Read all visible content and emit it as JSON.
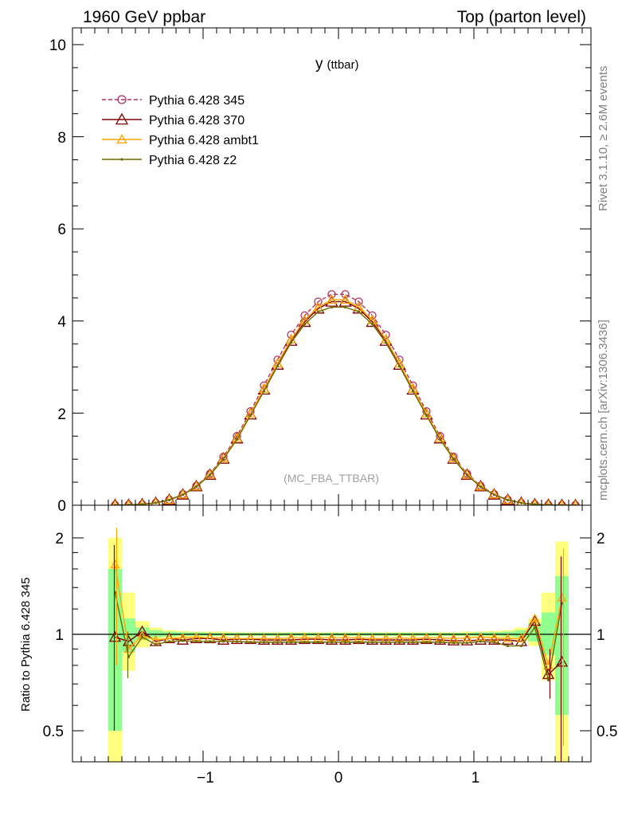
{
  "header": {
    "left": "1960 GeV ppbar",
    "right": "Top (parton level)"
  },
  "side_labels": {
    "rivet": "Rivet 3.1.10, ≥ 2.6M events",
    "mcplots": "mcplots.cern.ch [arXiv:1306.3436]"
  },
  "main_panel": {
    "title_main": "y",
    "title_sub": "(ttbar)",
    "watermark": "(MC_FBA_TTBAR)",
    "yticks": [
      "0",
      "2",
      "4",
      "6",
      "8",
      "10"
    ]
  },
  "ratio_panel": {
    "ylabel": "Ratio to Pythia 6.428 345",
    "yticks": [
      "0.5",
      "1",
      "2"
    ]
  },
  "xticks": [
    "−1",
    "0",
    "1"
  ],
  "chart_data": [
    {
      "type": "line",
      "title": "y (ttbar)",
      "xlabel": "",
      "ylabel": "",
      "xlim": [
        -1.95,
        1.9
      ],
      "ylim": [
        0,
        10.4
      ],
      "legend_position": "top-left",
      "x": [
        -1.65,
        -1.55,
        -1.45,
        -1.35,
        -1.25,
        -1.15,
        -1.05,
        -0.95,
        -0.85,
        -0.75,
        -0.65,
        -0.55,
        -0.45,
        -0.35,
        -0.25,
        -0.15,
        -0.05,
        0.05,
        0.15,
        0.25,
        0.35,
        0.45,
        0.55,
        0.65,
        0.75,
        0.85,
        0.95,
        1.05,
        1.15,
        1.25,
        1.35,
        1.45,
        1.55,
        1.65,
        1.75
      ],
      "series": [
        {
          "name": "Pythia 6.428 345",
          "color": "#b03060",
          "marker": "open-circle",
          "dashed": true,
          "values": [
            0.003,
            0.008,
            0.02,
            0.05,
            0.12,
            0.24,
            0.42,
            0.68,
            1.05,
            1.5,
            2.04,
            2.6,
            3.16,
            3.7,
            4.12,
            4.42,
            4.58,
            4.58,
            4.42,
            4.12,
            3.7,
            3.16,
            2.6,
            2.04,
            1.5,
            1.05,
            0.68,
            0.42,
            0.24,
            0.12,
            0.05,
            0.02,
            0.008,
            0.003,
            0.001
          ]
        },
        {
          "name": "Pythia 6.428 370",
          "color": "#800000",
          "marker": "open-triangle",
          "dashed": false,
          "values": [
            0.003,
            0.008,
            0.02,
            0.05,
            0.115,
            0.23,
            0.41,
            0.66,
            1.01,
            1.45,
            1.97,
            2.51,
            3.05,
            3.57,
            3.98,
            4.27,
            4.42,
            4.42,
            4.27,
            3.98,
            3.57,
            3.05,
            2.51,
            1.97,
            1.45,
            1.01,
            0.66,
            0.41,
            0.23,
            0.115,
            0.05,
            0.02,
            0.008,
            0.003,
            0.001
          ]
        },
        {
          "name": "Pythia 6.428 ambt1",
          "color": "#ffa500",
          "marker": "open-triangle",
          "dashed": false,
          "values": [
            0.003,
            0.008,
            0.02,
            0.05,
            0.117,
            0.234,
            0.41,
            0.665,
            1.02,
            1.46,
            1.99,
            2.53,
            3.08,
            3.6,
            4.02,
            4.3,
            4.46,
            4.46,
            4.3,
            4.02,
            3.6,
            3.08,
            2.53,
            1.99,
            1.46,
            1.02,
            0.665,
            0.41,
            0.234,
            0.117,
            0.05,
            0.02,
            0.008,
            0.003,
            0.001
          ]
        },
        {
          "name": "Pythia 6.428 z2",
          "color": "#6b6b00",
          "marker": "dot",
          "dashed": false,
          "values": [
            0.003,
            0.008,
            0.02,
            0.05,
            0.113,
            0.228,
            0.4,
            0.65,
            1.0,
            1.43,
            1.95,
            2.48,
            3.02,
            3.53,
            3.93,
            4.2,
            4.3,
            4.3,
            4.2,
            3.93,
            3.53,
            3.02,
            2.48,
            1.95,
            1.43,
            1.0,
            0.65,
            0.4,
            0.228,
            0.113,
            0.05,
            0.02,
            0.008,
            0.003,
            0.001
          ]
        }
      ]
    },
    {
      "type": "line",
      "title": "",
      "xlabel": "",
      "ylabel": "Ratio to Pythia 6.428 345",
      "xlim": [
        -1.95,
        1.9
      ],
      "ylim": [
        0.4,
        2.3
      ],
      "log_scale_y": true,
      "x": [
        -1.65,
        -1.55,
        -1.45,
        -1.35,
        -1.25,
        -1.15,
        -1.05,
        -0.95,
        -0.85,
        -0.75,
        -0.65,
        -0.55,
        -0.45,
        -0.35,
        -0.25,
        -0.15,
        -0.05,
        0.05,
        0.15,
        0.25,
        0.35,
        0.45,
        0.55,
        0.65,
        0.75,
        0.85,
        0.95,
        1.05,
        1.15,
        1.25,
        1.35,
        1.45,
        1.55,
        1.65
      ],
      "band_inner": [
        [
          0.5,
          1.6
        ],
        [
          0.88,
          1.12
        ],
        [
          0.96,
          1.05
        ],
        [
          0.98,
          1.03
        ],
        [
          0.985,
          1.02
        ],
        [
          0.99,
          1.015
        ],
        [
          0.99,
          1.015
        ],
        [
          0.99,
          1.01
        ],
        [
          0.99,
          1.01
        ],
        [
          0.99,
          1.01
        ],
        [
          0.99,
          1.01
        ],
        [
          0.99,
          1.01
        ],
        [
          0.99,
          1.01
        ],
        [
          0.99,
          1.01
        ],
        [
          0.99,
          1.01
        ],
        [
          0.99,
          1.01
        ],
        [
          0.99,
          1.01
        ],
        [
          0.99,
          1.01
        ],
        [
          0.99,
          1.01
        ],
        [
          0.99,
          1.01
        ],
        [
          0.99,
          1.01
        ],
        [
          0.99,
          1.01
        ],
        [
          0.99,
          1.01
        ],
        [
          0.99,
          1.01
        ],
        [
          0.99,
          1.01
        ],
        [
          0.99,
          1.01
        ],
        [
          0.99,
          1.01
        ],
        [
          0.99,
          1.015
        ],
        [
          0.99,
          1.015
        ],
        [
          0.985,
          1.02
        ],
        [
          0.98,
          1.03
        ],
        [
          0.95,
          1.08
        ],
        [
          0.86,
          1.17
        ],
        [
          0.56,
          1.52
        ]
      ],
      "band_outer": [
        [
          0.3,
          2.0
        ],
        [
          0.77,
          1.35
        ],
        [
          0.91,
          1.1
        ],
        [
          0.96,
          1.05
        ],
        [
          0.975,
          1.03
        ],
        [
          0.98,
          1.025
        ],
        [
          0.98,
          1.02
        ],
        [
          0.985,
          1.02
        ],
        [
          0.985,
          1.02
        ],
        [
          0.985,
          1.015
        ],
        [
          0.985,
          1.015
        ],
        [
          0.985,
          1.015
        ],
        [
          0.985,
          1.015
        ],
        [
          0.985,
          1.015
        ],
        [
          0.985,
          1.015
        ],
        [
          0.985,
          1.015
        ],
        [
          0.985,
          1.015
        ],
        [
          0.985,
          1.015
        ],
        [
          0.985,
          1.015
        ],
        [
          0.985,
          1.015
        ],
        [
          0.985,
          1.015
        ],
        [
          0.985,
          1.015
        ],
        [
          0.985,
          1.015
        ],
        [
          0.985,
          1.015
        ],
        [
          0.985,
          1.015
        ],
        [
          0.985,
          1.015
        ],
        [
          0.985,
          1.02
        ],
        [
          0.985,
          1.02
        ],
        [
          0.98,
          1.025
        ],
        [
          0.975,
          1.03
        ],
        [
          0.96,
          1.05
        ],
        [
          0.92,
          1.12
        ],
        [
          0.72,
          1.35
        ],
        [
          0.3,
          1.95
        ]
      ],
      "series": [
        {
          "name": "Pythia 6.428 370",
          "color": "#800000",
          "values": [
            0.98,
            0.95,
            1.02,
            0.95,
            0.97,
            0.96,
            0.97,
            0.97,
            0.96,
            0.965,
            0.965,
            0.96,
            0.96,
            0.96,
            0.965,
            0.965,
            0.96,
            0.96,
            0.965,
            0.96,
            0.96,
            0.96,
            0.96,
            0.965,
            0.96,
            0.955,
            0.955,
            0.96,
            0.96,
            0.96,
            0.95,
            1.1,
            0.75,
            0.82
          ]
        },
        {
          "name": "Pythia 6.428 ambt1",
          "color": "#ffa500",
          "values": [
            1.65,
            0.9,
            0.99,
            0.96,
            0.97,
            0.975,
            0.98,
            0.975,
            0.975,
            0.97,
            0.97,
            0.97,
            0.97,
            0.975,
            0.975,
            0.975,
            0.975,
            0.975,
            0.975,
            0.97,
            0.97,
            0.975,
            0.97,
            0.975,
            0.975,
            0.97,
            0.975,
            0.98,
            0.975,
            0.97,
            0.97,
            1.12,
            0.8,
            1.3
          ]
        },
        {
          "name": "Pythia 6.428 z2",
          "color": "#6b6b00",
          "values": [
            1.35,
            0.85,
            0.98,
            0.93,
            0.95,
            0.955,
            0.95,
            0.95,
            0.95,
            0.95,
            0.945,
            0.945,
            0.945,
            0.945,
            0.945,
            0.945,
            0.945,
            0.945,
            0.945,
            0.945,
            0.945,
            0.945,
            0.945,
            0.945,
            0.945,
            0.94,
            0.94,
            0.95,
            0.945,
            0.92,
            0.92,
            1.05,
            0.72,
            1.25
          ]
        }
      ]
    }
  ]
}
